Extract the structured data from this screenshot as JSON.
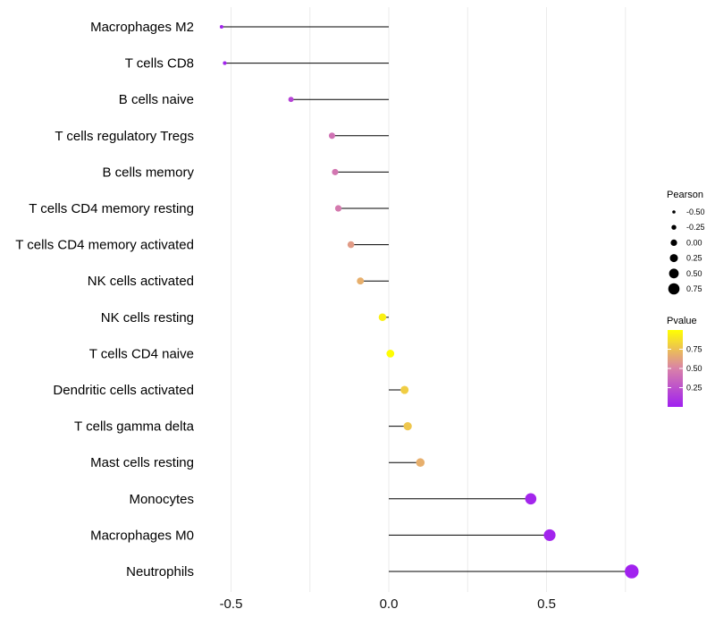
{
  "chart_data": {
    "type": "lollipop",
    "title": "",
    "xlabel": "",
    "ylabel": "",
    "xlim": [
      -0.6,
      0.8
    ],
    "x_ticks": [
      -0.5,
      0.0,
      0.5
    ],
    "x_tick_labels": [
      "-0.5",
      "0.0",
      "0.5"
    ],
    "grid": true,
    "categories": [
      "Macrophages M2",
      "T cells CD8",
      "B cells naive",
      "T cells regulatory  Tregs",
      "B cells memory",
      "T cells CD4 memory resting",
      "T cells CD4 memory activated",
      "NK cells activated",
      "NK cells resting",
      "T cells CD4 naive",
      "Dendritic cells activated",
      "T cells gamma delta",
      "Mast cells resting",
      "Monocytes",
      "Macrophages M0",
      "Neutrophils"
    ],
    "pearson": [
      -0.53,
      -0.52,
      -0.31,
      -0.18,
      -0.17,
      -0.16,
      -0.12,
      -0.09,
      -0.02,
      0.005,
      0.05,
      0.06,
      0.1,
      0.45,
      0.51,
      0.77
    ],
    "pvalue": [
      0.02,
      0.02,
      0.18,
      0.42,
      0.44,
      0.46,
      0.6,
      0.68,
      0.94,
      0.99,
      0.8,
      0.77,
      0.68,
      0.03,
      0.02,
      0.01
    ],
    "legend_size": {
      "title": "Pearson",
      "labels": [
        "-0.50",
        "-0.25",
        "0.00",
        "0.25",
        "0.50",
        "0.75"
      ],
      "values": [
        -0.5,
        -0.25,
        0.0,
        0.25,
        0.5,
        0.75
      ]
    },
    "legend_color": {
      "title": "Pvalue",
      "labels": [
        "0.75",
        "0.50",
        "0.25"
      ],
      "values": [
        0.75,
        0.5,
        0.25
      ],
      "range": [
        0.0,
        1.0
      ],
      "colors": {
        "low": "#a020f0",
        "mid": "#d982a8",
        "high": "#ffff00"
      }
    },
    "legend_placement": "right",
    "colors": {
      "stem": "#000000",
      "grid": "#ebebeb"
    }
  }
}
